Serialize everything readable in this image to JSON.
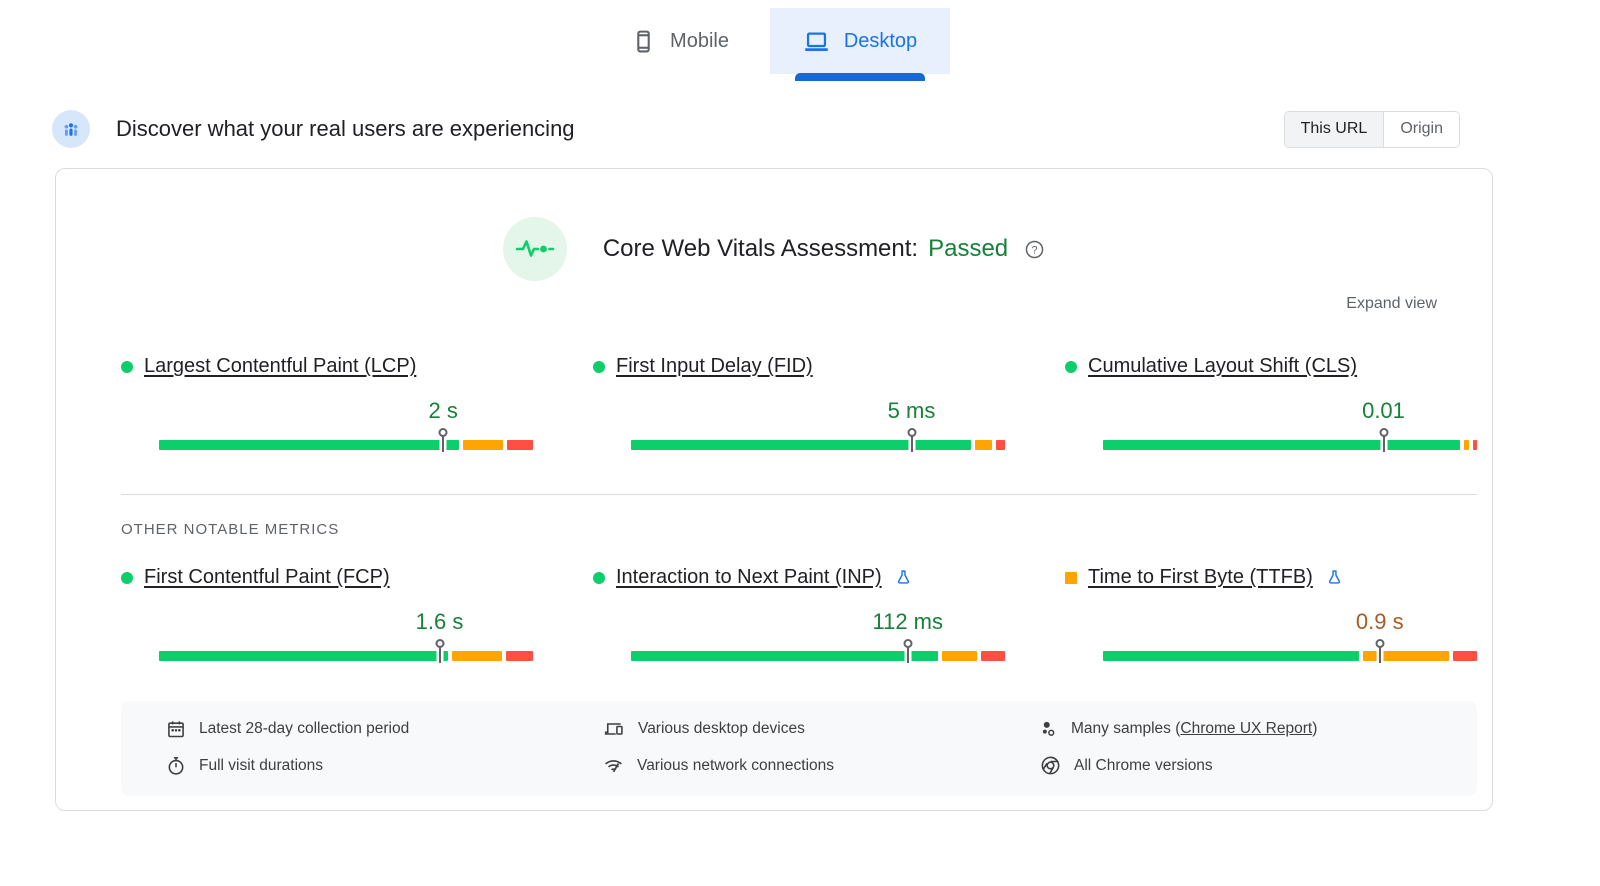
{
  "tabs": {
    "mobile": {
      "label": "Mobile"
    },
    "desktop": {
      "label": "Desktop"
    }
  },
  "header": {
    "title": "Discover what your real users are experiencing",
    "scope_toggle": {
      "this_url": "This URL",
      "origin": "Origin",
      "selected": "This URL"
    }
  },
  "assessment": {
    "title": "Core Web Vitals Assessment:",
    "status": "Passed",
    "expand_label": "Expand view"
  },
  "colors": {
    "good": "#0cce6b",
    "needs_improvement": "#ffa400",
    "poor": "#ff4e42",
    "good_text": "#188038",
    "average_text": "#aa5a23",
    "accent_blue": "#1a73e8"
  },
  "metrics_section": {
    "other_title": "OTHER NOTABLE METRICS",
    "core": [
      {
        "id": "lcp",
        "name": "Largest Contentful Paint (LCP)",
        "status": "good",
        "value": "2 s",
        "experimental": false,
        "marker_percent": 76,
        "distribution": {
          "good": 82,
          "needs_improvement": 11,
          "poor": 7
        }
      },
      {
        "id": "fid",
        "name": "First Input Delay (FID)",
        "status": "good",
        "value": "5 ms",
        "experimental": false,
        "marker_percent": 75,
        "distribution": {
          "good": 93,
          "needs_improvement": 4.5,
          "poor": 2.5
        }
      },
      {
        "id": "cls",
        "name": "Cumulative Layout Shift (CLS)",
        "status": "good",
        "value": "0.01",
        "experimental": false,
        "marker_percent": 75,
        "distribution": {
          "good": 97.5,
          "needs_improvement": 1.5,
          "poor": 1
        }
      }
    ],
    "other": [
      {
        "id": "fcp",
        "name": "First Contentful Paint (FCP)",
        "status": "good",
        "value": "1.6 s",
        "experimental": false,
        "marker_percent": 75,
        "distribution": {
          "good": 79,
          "needs_improvement": 13.5,
          "poor": 7.5
        }
      },
      {
        "id": "inp",
        "name": "Interaction to Next Paint (INP)",
        "status": "good",
        "value": "112 ms",
        "experimental": true,
        "marker_percent": 74,
        "distribution": {
          "good": 84,
          "needs_improvement": 9.5,
          "poor": 6.5
        }
      },
      {
        "id": "ttfb",
        "name": "Time to First Byte (TTFB)",
        "status": "average",
        "value": "0.9 s",
        "experimental": true,
        "marker_percent": 74,
        "distribution": {
          "good": 70,
          "needs_improvement": 23.5,
          "poor": 6.5
        }
      }
    ]
  },
  "footer": {
    "items": [
      {
        "icon": "calendar",
        "text": "Latest 28-day collection period"
      },
      {
        "icon": "devices",
        "text": "Various desktop devices"
      },
      {
        "icon": "samples",
        "text": "Many samples (",
        "link": "Chrome UX Report",
        "suffix": ")"
      },
      {
        "icon": "stopwatch",
        "text": "Full visit durations"
      },
      {
        "icon": "network",
        "text": "Various network connections"
      },
      {
        "icon": "chrome",
        "text": "All Chrome versions"
      }
    ]
  }
}
